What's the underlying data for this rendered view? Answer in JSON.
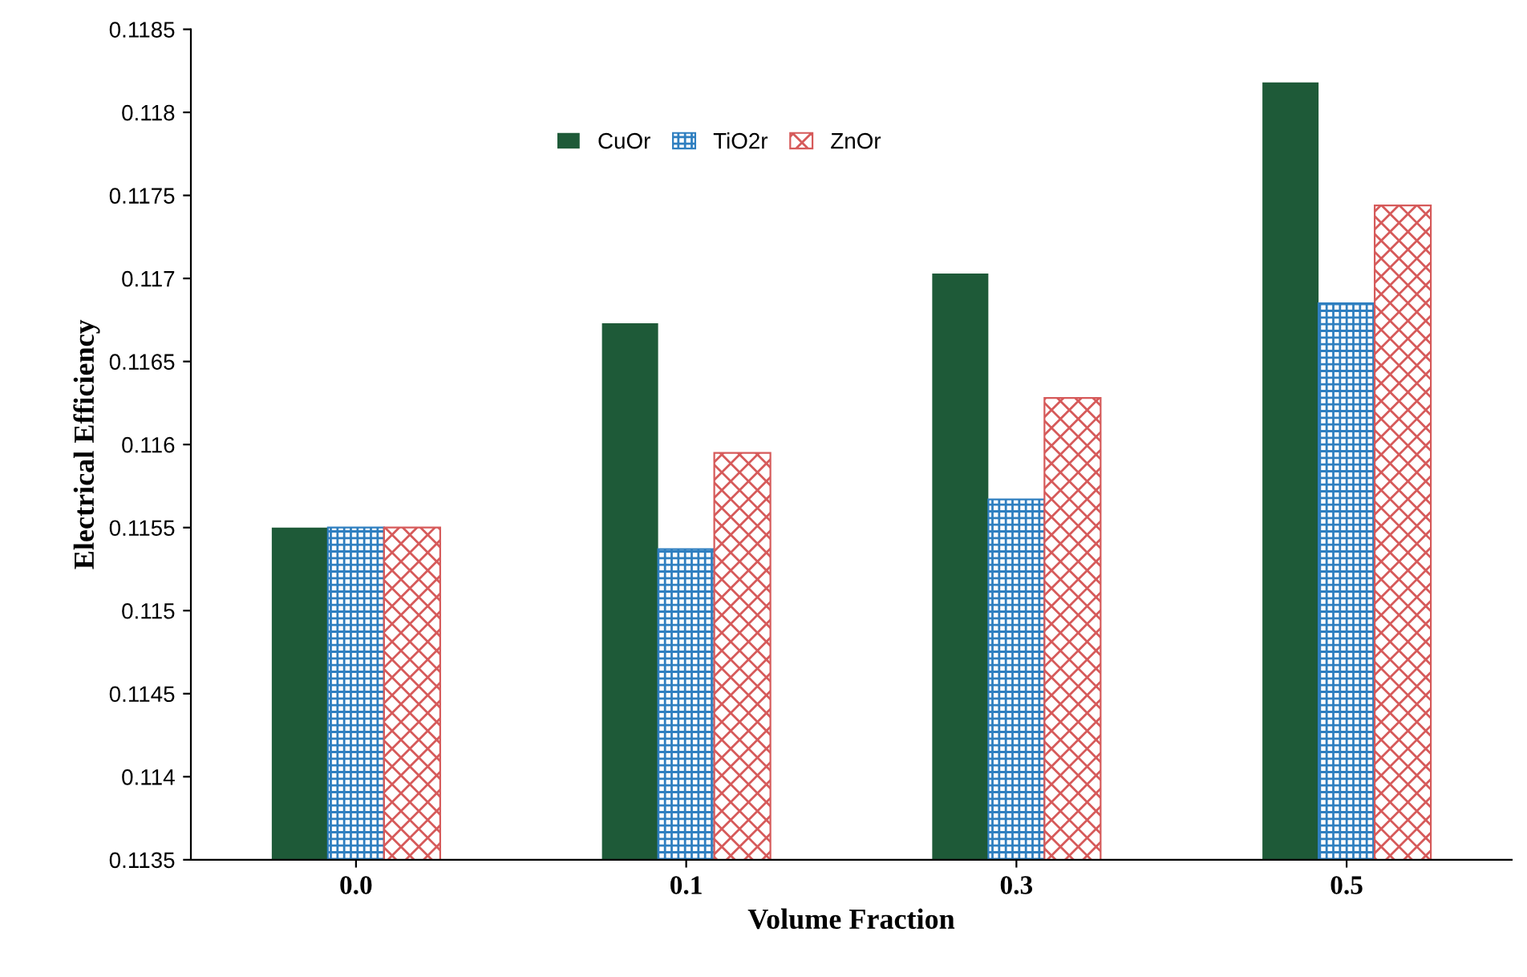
{
  "chart_data": {
    "type": "bar",
    "xlabel": "Volume Fraction",
    "ylabel": "Electrical Efficiency",
    "categories": [
      "0.0",
      "0.1",
      "0.3",
      "0.5"
    ],
    "series": [
      {
        "name": "CuOr",
        "color": "#1e5a38",
        "values": [
          0.1155,
          0.11673,
          0.11703,
          0.11818
        ]
      },
      {
        "name": "TiO2r",
        "color": "#2f7fc0",
        "values": [
          0.1155,
          0.11537,
          0.11567,
          0.11685
        ]
      },
      {
        "name": "ZnOr",
        "color": "#d65a5a",
        "values": [
          0.1155,
          0.11595,
          0.11628,
          0.11744
        ]
      }
    ],
    "ylim": [
      0.1135,
      0.1185
    ],
    "yticks": [
      0.1135,
      0.114,
      0.1145,
      0.115,
      0.1155,
      0.116,
      0.1165,
      0.117,
      0.1175,
      0.118,
      0.1185
    ],
    "legend": "top",
    "grid": false
  }
}
